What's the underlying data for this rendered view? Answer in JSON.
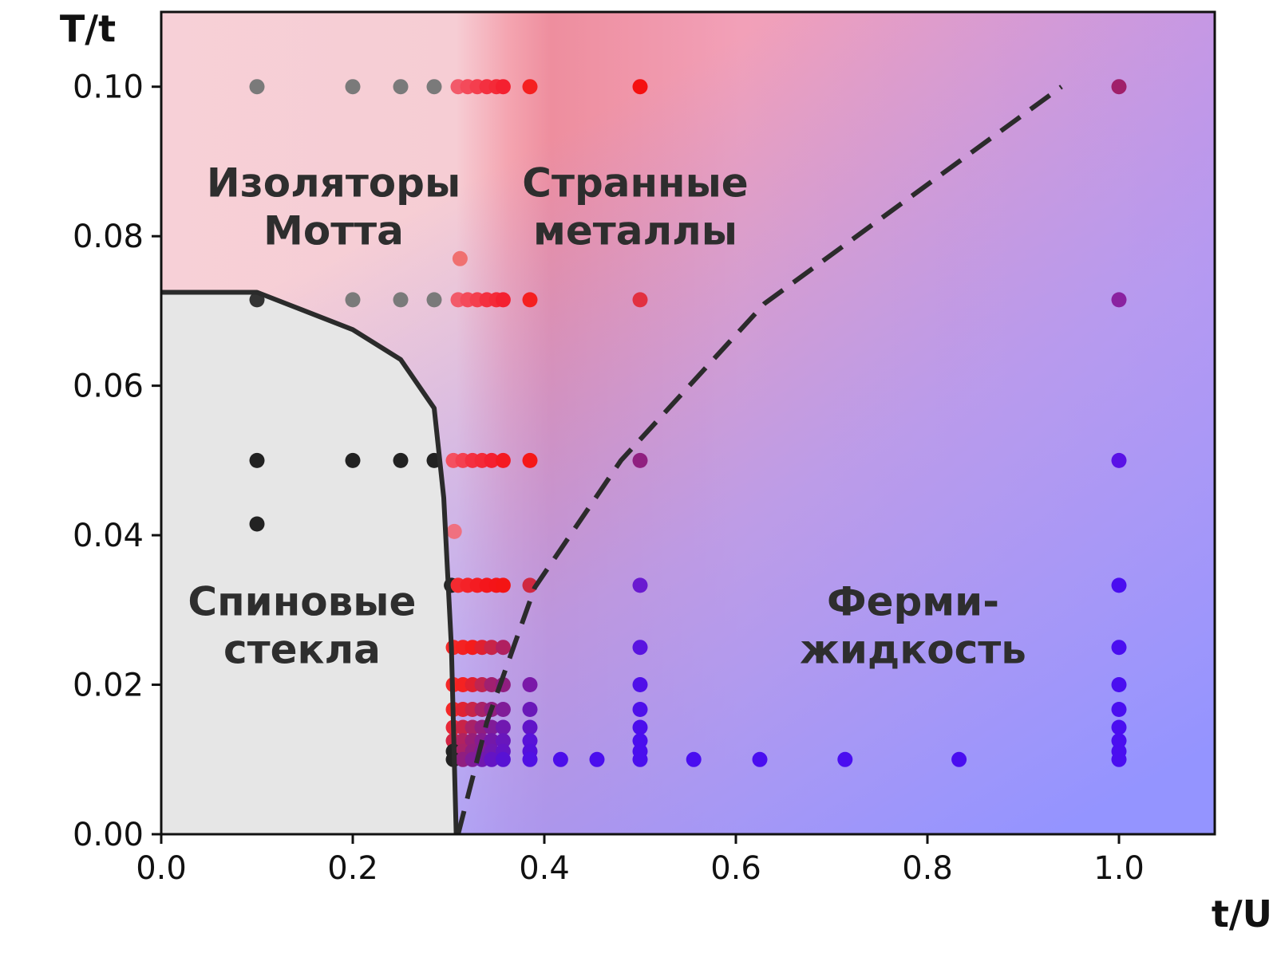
{
  "chart_data": {
    "type": "scatter",
    "xlabel": "t/U",
    "ylabel": "T/t",
    "xlim": [
      0.0,
      1.1
    ],
    "ylim": [
      0.0,
      0.11
    ],
    "xticks": [
      {
        "value": 0.0,
        "label": "0.0"
      },
      {
        "value": 0.2,
        "label": "0.2"
      },
      {
        "value": 0.4,
        "label": "0.4"
      },
      {
        "value": 0.6,
        "label": "0.6"
      },
      {
        "value": 0.8,
        "label": "0.8"
      },
      {
        "value": 1.0,
        "label": "1.0"
      }
    ],
    "yticks": [
      {
        "value": 0.0,
        "label": "0.00"
      },
      {
        "value": 0.02,
        "label": "0.02"
      },
      {
        "value": 0.04,
        "label": "0.04"
      },
      {
        "value": 0.06,
        "label": "0.06"
      },
      {
        "value": 0.08,
        "label": "0.08"
      },
      {
        "value": 0.1,
        "label": "0.10"
      }
    ],
    "grid": false,
    "background_colors": {
      "mott_insulator": "#f6cfd6",
      "strange_metal": "#f08a9e",
      "fermi_liquid": "#9d95ff",
      "spin_glass": "#e6e6e6"
    },
    "spin_glass_boundary": [
      [
        0.0,
        0.0725
      ],
      [
        0.1,
        0.0725
      ],
      [
        0.2,
        0.0675
      ],
      [
        0.25,
        0.0635
      ],
      [
        0.285,
        0.057
      ],
      [
        0.295,
        0.045
      ],
      [
        0.303,
        0.025
      ],
      [
        0.308,
        0.0
      ]
    ],
    "crossover_line": [
      [
        0.31,
        0.0
      ],
      [
        0.34,
        0.015
      ],
      [
        0.39,
        0.033
      ],
      [
        0.48,
        0.05
      ],
      [
        0.63,
        0.071
      ],
      [
        0.94,
        0.1
      ]
    ],
    "regions": [
      {
        "lines": [
          "Изоляторы",
          "Мотта"
        ],
        "x": 0.18,
        "y": 0.084
      },
      {
        "lines": [
          "Странные",
          "металлы"
        ],
        "x": 0.495,
        "y": 0.084
      },
      {
        "lines": [
          "Спиновые",
          "стекла"
        ],
        "x": 0.147,
        "y": 0.028
      },
      {
        "lines": [
          "Ферми-",
          "жидкость"
        ],
        "x": 0.785,
        "y": 0.028
      }
    ],
    "points": [
      {
        "x": 0.1,
        "y": 0.1,
        "color": "#7a7a7a"
      },
      {
        "x": 0.2,
        "y": 0.1,
        "color": "#7a7a7a"
      },
      {
        "x": 0.25,
        "y": 0.1,
        "color": "#7a7a7a"
      },
      {
        "x": 0.285,
        "y": 0.1,
        "color": "#7a7a7a"
      },
      {
        "x": 0.31,
        "y": 0.1,
        "color": "#f25a6a"
      },
      {
        "x": 0.32,
        "y": 0.1,
        "color": "#f44a5a"
      },
      {
        "x": 0.33,
        "y": 0.1,
        "color": "#f43e4e"
      },
      {
        "x": 0.34,
        "y": 0.1,
        "color": "#f43040"
      },
      {
        "x": 0.35,
        "y": 0.1,
        "color": "#f42a38"
      },
      {
        "x": 0.357,
        "y": 0.1,
        "color": "#f42030"
      },
      {
        "x": 0.385,
        "y": 0.1,
        "color": "#f52020"
      },
      {
        "x": 0.5,
        "y": 0.1,
        "color": "#f51010"
      },
      {
        "x": 1.0,
        "y": 0.1,
        "color": "#a0206a"
      },
      {
        "x": 0.312,
        "y": 0.077,
        "color": "#f07070"
      },
      {
        "x": 0.1,
        "y": 0.0715,
        "color": "#333333"
      },
      {
        "x": 0.2,
        "y": 0.0715,
        "color": "#7a7a7a"
      },
      {
        "x": 0.25,
        "y": 0.0715,
        "color": "#7a7a7a"
      },
      {
        "x": 0.285,
        "y": 0.0715,
        "color": "#7a7a7a"
      },
      {
        "x": 0.31,
        "y": 0.0715,
        "color": "#f25a6a"
      },
      {
        "x": 0.32,
        "y": 0.0715,
        "color": "#f44a5a"
      },
      {
        "x": 0.33,
        "y": 0.0715,
        "color": "#f43e4e"
      },
      {
        "x": 0.34,
        "y": 0.0715,
        "color": "#f43040"
      },
      {
        "x": 0.35,
        "y": 0.0715,
        "color": "#f42a38"
      },
      {
        "x": 0.357,
        "y": 0.0715,
        "color": "#f42030"
      },
      {
        "x": 0.385,
        "y": 0.0715,
        "color": "#f52020"
      },
      {
        "x": 0.5,
        "y": 0.0715,
        "color": "#e23040"
      },
      {
        "x": 1.0,
        "y": 0.0715,
        "color": "#8a22a0"
      },
      {
        "x": 0.1,
        "y": 0.05,
        "color": "#222222"
      },
      {
        "x": 0.2,
        "y": 0.05,
        "color": "#222222"
      },
      {
        "x": 0.25,
        "y": 0.05,
        "color": "#222222"
      },
      {
        "x": 0.285,
        "y": 0.05,
        "color": "#222222"
      },
      {
        "x": 0.305,
        "y": 0.05,
        "color": "#f45060"
      },
      {
        "x": 0.315,
        "y": 0.05,
        "color": "#f44050"
      },
      {
        "x": 0.325,
        "y": 0.05,
        "color": "#f43040"
      },
      {
        "x": 0.335,
        "y": 0.05,
        "color": "#f42a38"
      },
      {
        "x": 0.345,
        "y": 0.05,
        "color": "#f42030"
      },
      {
        "x": 0.357,
        "y": 0.05,
        "color": "#f41a22"
      },
      {
        "x": 0.385,
        "y": 0.05,
        "color": "#f51818"
      },
      {
        "x": 0.5,
        "y": 0.05,
        "color": "#902080"
      },
      {
        "x": 1.0,
        "y": 0.05,
        "color": "#5a12e6"
      },
      {
        "x": 0.1,
        "y": 0.0415,
        "color": "#222222"
      },
      {
        "x": 0.306,
        "y": 0.0405,
        "color": "#f07080"
      },
      {
        "x": 0.303,
        "y": 0.0333,
        "color": "#222222"
      },
      {
        "x": 0.31,
        "y": 0.0333,
        "color": "#f42a30"
      },
      {
        "x": 0.32,
        "y": 0.0333,
        "color": "#f42228"
      },
      {
        "x": 0.33,
        "y": 0.0333,
        "color": "#f41c22"
      },
      {
        "x": 0.34,
        "y": 0.0333,
        "color": "#f4161c"
      },
      {
        "x": 0.35,
        "y": 0.0333,
        "color": "#f41418"
      },
      {
        "x": 0.357,
        "y": 0.0333,
        "color": "#f41414"
      },
      {
        "x": 0.385,
        "y": 0.0333,
        "color": "#d02840"
      },
      {
        "x": 0.5,
        "y": 0.0333,
        "color": "#6a1ad0"
      },
      {
        "x": 1.0,
        "y": 0.0333,
        "color": "#4a0ef0"
      },
      {
        "x": 0.305,
        "y": 0.025,
        "color": "#f42828"
      },
      {
        "x": 0.315,
        "y": 0.025,
        "color": "#f42222"
      },
      {
        "x": 0.325,
        "y": 0.025,
        "color": "#f41c1c"
      },
      {
        "x": 0.335,
        "y": 0.025,
        "color": "#e02030"
      },
      {
        "x": 0.345,
        "y": 0.025,
        "color": "#c82448"
      },
      {
        "x": 0.357,
        "y": 0.025,
        "color": "#b02060"
      },
      {
        "x": 0.5,
        "y": 0.025,
        "color": "#5a14e0"
      },
      {
        "x": 1.0,
        "y": 0.025,
        "color": "#4a0ef0"
      },
      {
        "x": 0.305,
        "y": 0.02,
        "color": "#f42828"
      },
      {
        "x": 0.315,
        "y": 0.02,
        "color": "#f42222"
      },
      {
        "x": 0.325,
        "y": 0.02,
        "color": "#e02030"
      },
      {
        "x": 0.335,
        "y": 0.02,
        "color": "#c02450"
      },
      {
        "x": 0.345,
        "y": 0.02,
        "color": "#a02070"
      },
      {
        "x": 0.357,
        "y": 0.02,
        "color": "#901e80"
      },
      {
        "x": 0.385,
        "y": 0.02,
        "color": "#7a18a8"
      },
      {
        "x": 0.5,
        "y": 0.02,
        "color": "#5010e8"
      },
      {
        "x": 1.0,
        "y": 0.02,
        "color": "#4a0ef0"
      },
      {
        "x": 0.305,
        "y": 0.0167,
        "color": "#f42828"
      },
      {
        "x": 0.315,
        "y": 0.0167,
        "color": "#e02232"
      },
      {
        "x": 0.325,
        "y": 0.0167,
        "color": "#c82448"
      },
      {
        "x": 0.335,
        "y": 0.0167,
        "color": "#a82268"
      },
      {
        "x": 0.345,
        "y": 0.0167,
        "color": "#901e80"
      },
      {
        "x": 0.357,
        "y": 0.0167,
        "color": "#801c98"
      },
      {
        "x": 0.385,
        "y": 0.0167,
        "color": "#6a18b8"
      },
      {
        "x": 0.5,
        "y": 0.0167,
        "color": "#4e10ea"
      },
      {
        "x": 1.0,
        "y": 0.0167,
        "color": "#4a0ef0"
      },
      {
        "x": 0.305,
        "y": 0.0143,
        "color": "#e82838"
      },
      {
        "x": 0.315,
        "y": 0.0143,
        "color": "#c82448"
      },
      {
        "x": 0.325,
        "y": 0.0143,
        "color": "#a82268"
      },
      {
        "x": 0.335,
        "y": 0.0143,
        "color": "#901e80"
      },
      {
        "x": 0.345,
        "y": 0.0143,
        "color": "#801c98"
      },
      {
        "x": 0.357,
        "y": 0.0143,
        "color": "#7018b0"
      },
      {
        "x": 0.385,
        "y": 0.0143,
        "color": "#6014c8"
      },
      {
        "x": 0.5,
        "y": 0.0143,
        "color": "#4c0eec"
      },
      {
        "x": 1.0,
        "y": 0.0143,
        "color": "#4a0ef0"
      },
      {
        "x": 0.305,
        "y": 0.0125,
        "color": "#d02444"
      },
      {
        "x": 0.315,
        "y": 0.0125,
        "color": "#b02260"
      },
      {
        "x": 0.325,
        "y": 0.0125,
        "color": "#981e78"
      },
      {
        "x": 0.335,
        "y": 0.0125,
        "color": "#861c90"
      },
      {
        "x": 0.345,
        "y": 0.0125,
        "color": "#7418a8"
      },
      {
        "x": 0.357,
        "y": 0.0125,
        "color": "#6816bc"
      },
      {
        "x": 0.385,
        "y": 0.0125,
        "color": "#5812d8"
      },
      {
        "x": 0.5,
        "y": 0.0125,
        "color": "#4a0eee"
      },
      {
        "x": 1.0,
        "y": 0.0125,
        "color": "#4a0ef0"
      },
      {
        "x": 0.305,
        "y": 0.0111,
        "color": "#222222"
      },
      {
        "x": 0.315,
        "y": 0.0111,
        "color": "#a82268"
      },
      {
        "x": 0.325,
        "y": 0.0111,
        "color": "#901e80"
      },
      {
        "x": 0.335,
        "y": 0.0111,
        "color": "#801c98"
      },
      {
        "x": 0.345,
        "y": 0.0111,
        "color": "#7018b0"
      },
      {
        "x": 0.357,
        "y": 0.0111,
        "color": "#6414c4"
      },
      {
        "x": 0.385,
        "y": 0.0111,
        "color": "#5410dc"
      },
      {
        "x": 0.5,
        "y": 0.0111,
        "color": "#4a0eee"
      },
      {
        "x": 1.0,
        "y": 0.0111,
        "color": "#4a0ef0"
      },
      {
        "x": 0.305,
        "y": 0.01,
        "color": "#222222"
      },
      {
        "x": 0.315,
        "y": 0.01,
        "color": "#901e80"
      },
      {
        "x": 0.325,
        "y": 0.01,
        "color": "#801c98"
      },
      {
        "x": 0.335,
        "y": 0.01,
        "color": "#7018b0"
      },
      {
        "x": 0.345,
        "y": 0.01,
        "color": "#6414c4"
      },
      {
        "x": 0.357,
        "y": 0.01,
        "color": "#5812d4"
      },
      {
        "x": 0.385,
        "y": 0.01,
        "color": "#5010e4"
      },
      {
        "x": 0.417,
        "y": 0.01,
        "color": "#4c0eea"
      },
      {
        "x": 0.455,
        "y": 0.01,
        "color": "#4a0eee"
      },
      {
        "x": 0.5,
        "y": 0.01,
        "color": "#4a0eee"
      },
      {
        "x": 0.556,
        "y": 0.01,
        "color": "#4a0ef0"
      },
      {
        "x": 0.625,
        "y": 0.01,
        "color": "#4a0ef0"
      },
      {
        "x": 0.714,
        "y": 0.01,
        "color": "#4a0ef0"
      },
      {
        "x": 0.833,
        "y": 0.01,
        "color": "#4a0ef0"
      },
      {
        "x": 1.0,
        "y": 0.01,
        "color": "#4a0ef0"
      }
    ]
  }
}
